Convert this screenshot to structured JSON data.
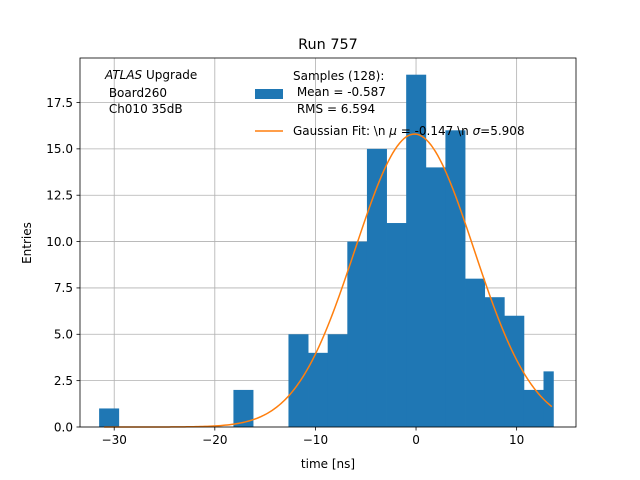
{
  "chart_data": {
    "type": "bar",
    "title": "Run 757",
    "xlabel": "time [ns]",
    "ylabel": "Entries",
    "xlim": [
      -33.4,
      15.9
    ],
    "ylim": [
      0,
      19.9
    ],
    "xticks": [
      -30,
      -20,
      -10,
      0,
      10
    ],
    "yticks": [
      0.0,
      2.5,
      5.0,
      7.5,
      10.0,
      12.5,
      15.0,
      17.5
    ],
    "grid": true,
    "annotation": {
      "italic": "ATLAS",
      "line1_rest": " Upgrade",
      "line2": " Board260",
      "line3": " Ch010 35dB"
    },
    "histogram": {
      "name": "Samples (128):",
      "stat_mean": " Mean = -0.587",
      "stat_rms": " RMS = 6.594",
      "color": "#1f77b4",
      "bins": [
        {
          "x0": -31.5,
          "x1": -29.55,
          "count": 1
        },
        {
          "x0": -18.15,
          "x1": -16.2,
          "count": 2
        },
        {
          "x0": -12.68,
          "x1": -10.73,
          "count": 5
        },
        {
          "x0": -10.73,
          "x1": -8.78,
          "count": 4
        },
        {
          "x0": -8.78,
          "x1": -6.83,
          "count": 5
        },
        {
          "x0": -6.83,
          "x1": -4.88,
          "count": 10
        },
        {
          "x0": -4.88,
          "x1": -2.93,
          "count": 15
        },
        {
          "x0": -2.93,
          "x1": -0.98,
          "count": 11
        },
        {
          "x0": -0.98,
          "x1": 0.97,
          "count": 19
        },
        {
          "x0": 0.97,
          "x1": 2.92,
          "count": 14
        },
        {
          "x0": 2.92,
          "x1": 4.87,
          "count": 16
        },
        {
          "x0": 4.87,
          "x1": 6.82,
          "count": 8
        },
        {
          "x0": 6.82,
          "x1": 8.77,
          "count": 7
        },
        {
          "x0": 8.77,
          "x1": 10.72,
          "count": 6
        },
        {
          "x0": 10.72,
          "x1": 12.67,
          "count": 2
        },
        {
          "x0": 12.67,
          "x1": 13.65,
          "count": 3
        }
      ]
    },
    "fit": {
      "label": "Gaussian Fit: \\n $\\mu$ = -0.147 \\n $\\sigma$=5.908",
      "label_pre": "Gaussian Fit: \\n ",
      "mu_symbol": "μ",
      "label_mid": " = -0.147 \\n ",
      "sigma_symbol": "σ",
      "label_end": "=5.908",
      "color": "#ff7f0e",
      "amplitude": 15.8,
      "mu": -0.147,
      "sigma": 5.908,
      "x_range": [
        -31.0,
        13.5
      ]
    }
  }
}
